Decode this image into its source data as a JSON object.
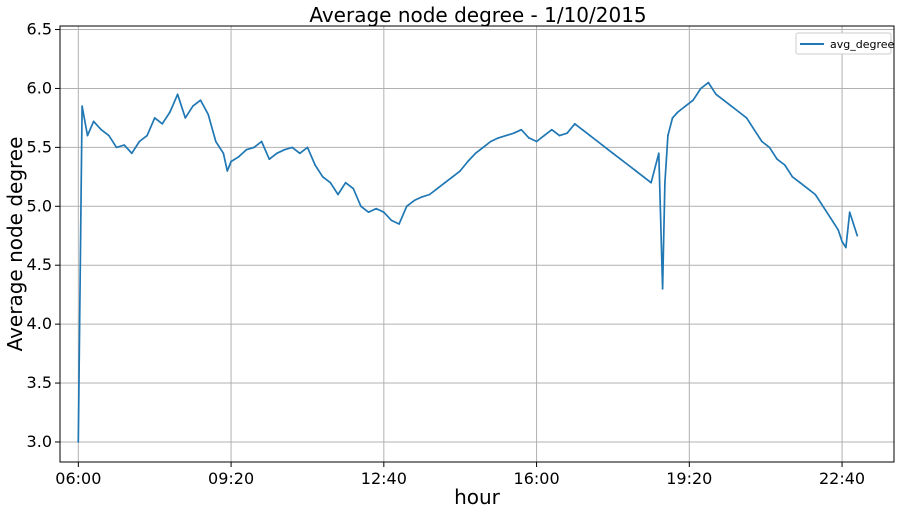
{
  "chart_data": {
    "type": "line",
    "title": "Average node degree - 1/10/2015",
    "xlabel": "hour",
    "ylabel": "Average node degree",
    "xlim": [
      "05:36",
      "23:48"
    ],
    "ylim": [
      2.83,
      6.53
    ],
    "grid": true,
    "legend_position": "top-right",
    "colors": {
      "series": "#1f77b4"
    },
    "x_ticks": [
      "06:00",
      "09:20",
      "12:40",
      "16:00",
      "19:20",
      "22:40"
    ],
    "y_ticks": [
      "3.0",
      "3.5",
      "4.0",
      "4.5",
      "5.0",
      "5.5",
      "6.0",
      "6.5"
    ],
    "series": [
      {
        "name": "avg_degree",
        "x": [
          "06:00",
          "06:05",
          "06:12",
          "06:20",
          "06:30",
          "06:40",
          "06:50",
          "07:00",
          "07:10",
          "07:20",
          "07:30",
          "07:40",
          "07:50",
          "08:00",
          "08:10",
          "08:20",
          "08:30",
          "08:40",
          "08:50",
          "09:00",
          "09:10",
          "09:15",
          "09:20",
          "09:30",
          "09:40",
          "09:50",
          "10:00",
          "10:10",
          "10:20",
          "10:30",
          "10:40",
          "10:50",
          "11:00",
          "11:10",
          "11:20",
          "11:30",
          "11:40",
          "11:50",
          "12:00",
          "12:10",
          "12:20",
          "12:30",
          "12:40",
          "12:50",
          "13:00",
          "13:10",
          "13:20",
          "13:30",
          "13:40",
          "13:50",
          "14:00",
          "14:10",
          "14:20",
          "14:30",
          "14:40",
          "14:50",
          "15:00",
          "15:10",
          "15:20",
          "15:30",
          "15:40",
          "15:50",
          "16:00",
          "16:10",
          "16:20",
          "16:30",
          "16:40",
          "16:50",
          "17:00",
          "17:10",
          "17:20",
          "17:30",
          "17:40",
          "17:50",
          "18:00",
          "18:10",
          "18:20",
          "18:30",
          "18:40",
          "18:45",
          "18:48",
          "18:52",
          "18:58",
          "19:05",
          "19:15",
          "19:25",
          "19:35",
          "19:45",
          "19:55",
          "20:05",
          "20:15",
          "20:25",
          "20:35",
          "20:45",
          "20:55",
          "21:05",
          "21:15",
          "21:25",
          "21:35",
          "21:45",
          "21:55",
          "22:05",
          "22:15",
          "22:25",
          "22:35",
          "22:40",
          "22:45",
          "22:50",
          "22:55",
          "23:00"
        ],
        "y": [
          3.0,
          5.85,
          5.6,
          5.72,
          5.65,
          5.6,
          5.5,
          5.52,
          5.45,
          5.55,
          5.6,
          5.75,
          5.7,
          5.8,
          5.95,
          5.75,
          5.85,
          5.9,
          5.78,
          5.55,
          5.45,
          5.3,
          5.38,
          5.42,
          5.48,
          5.5,
          5.55,
          5.4,
          5.45,
          5.48,
          5.5,
          5.45,
          5.5,
          5.35,
          5.25,
          5.2,
          5.1,
          5.2,
          5.15,
          5.0,
          4.95,
          4.98,
          4.95,
          4.88,
          4.85,
          5.0,
          5.05,
          5.08,
          5.1,
          5.15,
          5.2,
          5.25,
          5.3,
          5.38,
          5.45,
          5.5,
          5.55,
          5.58,
          5.6,
          5.62,
          5.65,
          5.58,
          5.55,
          5.6,
          5.65,
          5.6,
          5.62,
          5.7,
          5.65,
          5.6,
          5.55,
          5.5,
          5.45,
          5.4,
          5.35,
          5.3,
          5.25,
          5.2,
          5.45,
          4.3,
          5.2,
          5.6,
          5.75,
          5.8,
          5.85,
          5.9,
          6.0,
          6.05,
          5.95,
          5.9,
          5.85,
          5.8,
          5.75,
          5.65,
          5.55,
          5.5,
          5.4,
          5.35,
          5.25,
          5.2,
          5.15,
          5.1,
          5.0,
          4.9,
          4.8,
          4.7,
          4.65,
          4.95,
          4.85,
          4.75
        ]
      }
    ]
  }
}
